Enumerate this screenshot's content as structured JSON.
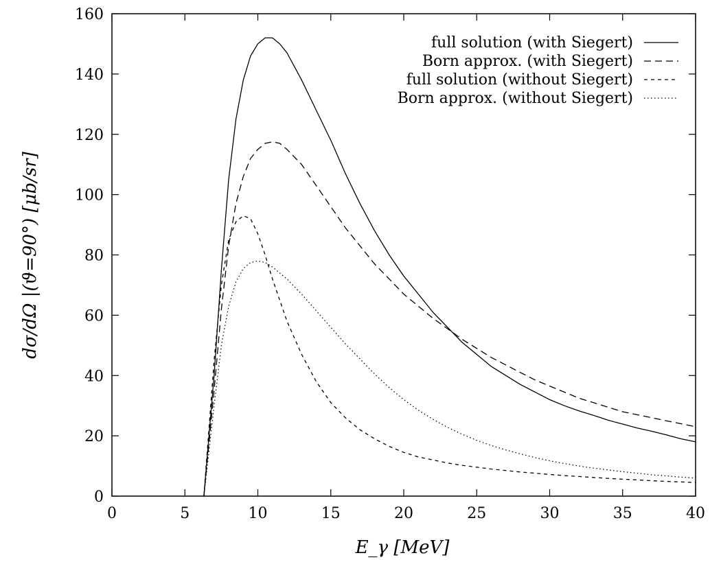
{
  "chart_data": {
    "type": "line",
    "title": "",
    "xlabel": "E_γ [MeV]",
    "ylabel": "dσ/dΩ |(ϑ=90°) [μb/sr]",
    "xlim": [
      0,
      40
    ],
    "ylim": [
      0,
      160
    ],
    "xticks": [
      0,
      5,
      10,
      15,
      20,
      25,
      30,
      35,
      40
    ],
    "yticks": [
      0,
      20,
      40,
      60,
      80,
      100,
      120,
      140,
      160
    ],
    "grid": false,
    "legend_position": "top-right",
    "series": [
      {
        "name": "full solution (with Siegert)",
        "style": "solid",
        "x": [
          6.3,
          7,
          7.5,
          8,
          8.5,
          9,
          9.5,
          10,
          10.5,
          11,
          11.5,
          12,
          13,
          14,
          15,
          16,
          17,
          18,
          19,
          20,
          21,
          22,
          23,
          24,
          25,
          26,
          27,
          28,
          29,
          30,
          31,
          32,
          33,
          34,
          35,
          36,
          37,
          38,
          39,
          40
        ],
        "y": [
          0,
          40,
          75,
          105,
          125,
          138,
          146,
          150,
          152,
          152,
          150,
          147,
          138,
          128,
          118,
          107,
          97,
          88,
          80,
          73,
          67,
          61,
          56,
          51,
          47,
          43,
          40,
          37,
          34.5,
          32,
          30,
          28.3,
          26.8,
          25.2,
          23.9,
          22.6,
          21.5,
          20.3,
          19,
          18
        ]
      },
      {
        "name": "Born approx. (with Siegert)",
        "style": "dashed",
        "x": [
          6.3,
          7,
          7.5,
          8,
          8.5,
          9,
          9.5,
          10,
          10.5,
          11,
          11.5,
          12,
          13,
          14,
          15,
          16,
          17,
          18,
          19,
          20,
          21,
          22,
          23,
          24,
          25,
          26,
          27,
          28,
          29,
          30,
          31,
          32,
          33,
          34,
          35,
          36,
          37,
          38,
          39,
          40
        ],
        "y": [
          0,
          35,
          62,
          83,
          97,
          106,
          112,
          115,
          117,
          117.5,
          117,
          115,
          110,
          103,
          96,
          89,
          83,
          77,
          72,
          67,
          63,
          59,
          55.5,
          52,
          49,
          46,
          43.5,
          41,
          38.5,
          36.5,
          34.5,
          32.5,
          31,
          29.5,
          28,
          27,
          26,
          25,
          24,
          23
        ]
      },
      {
        "name": "full solution (without Siegert)",
        "style": "short-dashed",
        "x": [
          6.3,
          7,
          7.5,
          8,
          8.5,
          9,
          9.5,
          10,
          10.5,
          11,
          11.5,
          12,
          13,
          14,
          15,
          16,
          17,
          18,
          19,
          20,
          21,
          22,
          23,
          24,
          25,
          26,
          27,
          28,
          29,
          30,
          31,
          32,
          33,
          34,
          35,
          36,
          37,
          38,
          39,
          40
        ],
        "y": [
          0,
          45,
          70,
          85,
          91,
          93,
          92,
          87,
          80,
          72,
          65,
          58,
          47,
          38,
          31,
          26,
          22,
          19,
          16.5,
          14.5,
          13,
          12,
          11,
          10.2,
          9.6,
          9,
          8.5,
          8,
          7.6,
          7.2,
          6.8,
          6.5,
          6.2,
          5.9,
          5.6,
          5.4,
          5.1,
          4.9,
          4.7,
          4.5
        ]
      },
      {
        "name": "Born approx. (without Siegert)",
        "style": "dotted",
        "x": [
          6.3,
          7,
          7.5,
          8,
          8.5,
          9,
          9.5,
          10,
          10.5,
          11,
          11.5,
          12,
          13,
          14,
          15,
          16,
          17,
          18,
          19,
          20,
          21,
          22,
          23,
          24,
          25,
          26,
          27,
          28,
          29,
          30,
          31,
          32,
          33,
          34,
          35,
          36,
          37,
          38,
          39,
          40
        ],
        "y": [
          0,
          30,
          50,
          63,
          71,
          75.5,
          77.5,
          78,
          77.5,
          76,
          74,
          72,
          67,
          61.5,
          56,
          50.5,
          45.5,
          40.5,
          36,
          32,
          28.5,
          25.5,
          22.8,
          20.5,
          18.5,
          16.8,
          15.3,
          14,
          12.8,
          11.7,
          10.8,
          10,
          9.3,
          8.7,
          8.1,
          7.6,
          7.1,
          6.7,
          6.3,
          6
        ]
      }
    ]
  }
}
